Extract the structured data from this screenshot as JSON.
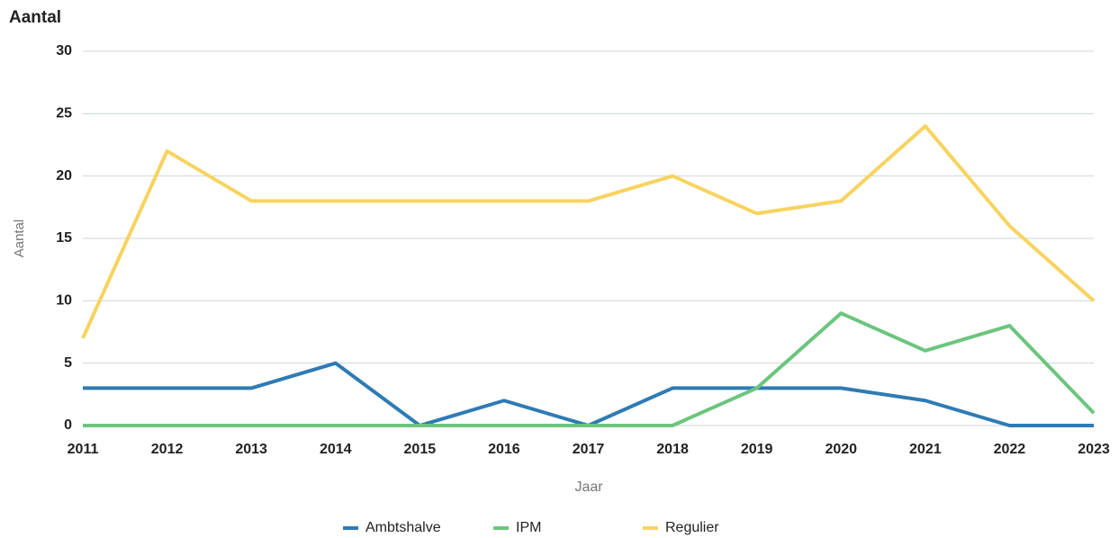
{
  "chart_data": {
    "type": "line",
    "title": "Aantal",
    "y_label": "Aantal",
    "x_label": "Jaar",
    "x": [
      2011,
      2012,
      2013,
      2014,
      2015,
      2016,
      2017,
      2018,
      2019,
      2020,
      2021,
      2022,
      2023
    ],
    "xlim": [
      2011,
      2023
    ],
    "xticks": [
      2011,
      2012,
      2013,
      2014,
      2015,
      2016,
      2017,
      2018,
      2019,
      2020,
      2021,
      2022,
      2023
    ],
    "ylim": [
      0,
      30
    ],
    "yticks": [
      0,
      5,
      10,
      15,
      20,
      25,
      30
    ],
    "grid": true,
    "series": [
      {
        "name": "Ambtshalve",
        "color": "#2e7bb5",
        "values": [
          3,
          3,
          3,
          5,
          0,
          2,
          0,
          3,
          3,
          3,
          2,
          0,
          0
        ]
      },
      {
        "name": "IPM",
        "color": "#6cc57d",
        "values": [
          0,
          0,
          0,
          0,
          0,
          0,
          0,
          0,
          3,
          9,
          6,
          8,
          1
        ]
      },
      {
        "name": "Regulier",
        "color": "#f7d35f",
        "values": [
          7,
          22,
          18,
          18,
          18,
          18,
          18,
          20,
          17,
          18,
          24,
          16,
          10
        ]
      }
    ]
  }
}
